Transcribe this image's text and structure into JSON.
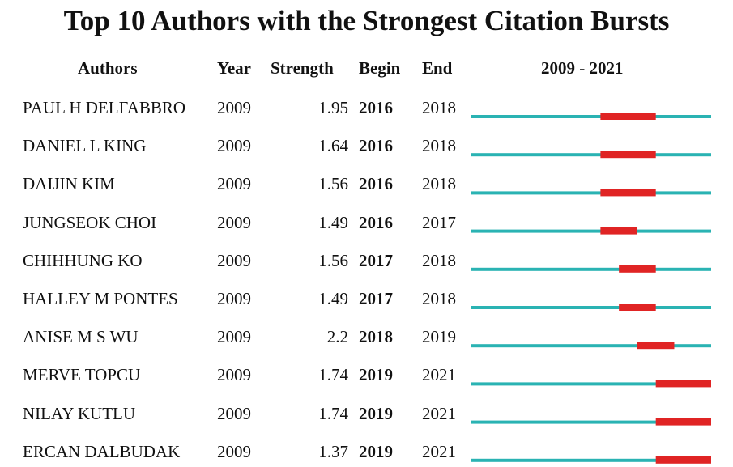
{
  "chart_data": {
    "type": "table",
    "title": "Top 10 Authors with the Strongest Citation Bursts",
    "columns": [
      "Authors",
      "Year",
      "Strength",
      "Begin",
      "End",
      "2009 - 2021"
    ],
    "range_label": "2009 - 2021",
    "range": [
      2009,
      2021
    ],
    "colors": {
      "timeline": "#2ab3b3",
      "burst": "#e02424"
    },
    "rows": [
      {
        "author": "PAUL H DELFABBRO",
        "year": "2009",
        "strength": "1.95",
        "begin": "2016",
        "end": "2018"
      },
      {
        "author": "DANIEL L KING",
        "year": "2009",
        "strength": "1.64",
        "begin": "2016",
        "end": "2018"
      },
      {
        "author": "DAIJIN KIM",
        "year": "2009",
        "strength": "1.56",
        "begin": "2016",
        "end": "2018"
      },
      {
        "author": "JUNGSEOK CHOI",
        "year": "2009",
        "strength": "1.49",
        "begin": "2016",
        "end": "2017"
      },
      {
        "author": "CHIHHUNG KO",
        "year": "2009",
        "strength": "1.56",
        "begin": "2017",
        "end": "2018"
      },
      {
        "author": "HALLEY M PONTES",
        "year": "2009",
        "strength": "1.49",
        "begin": "2017",
        "end": "2018"
      },
      {
        "author": "ANISE M S WU",
        "year": "2009",
        "strength": "2.2",
        "begin": "2018",
        "end": "2019"
      },
      {
        "author": "MERVE TOPCU",
        "year": "2009",
        "strength": "1.74",
        "begin": "2019",
        "end": "2021"
      },
      {
        "author": "NILAY KUTLU",
        "year": "2009",
        "strength": "1.74",
        "begin": "2019",
        "end": "2021"
      },
      {
        "author": "ERCAN DALBUDAK",
        "year": "2009",
        "strength": "1.37",
        "begin": "2019",
        "end": "2021"
      }
    ]
  }
}
